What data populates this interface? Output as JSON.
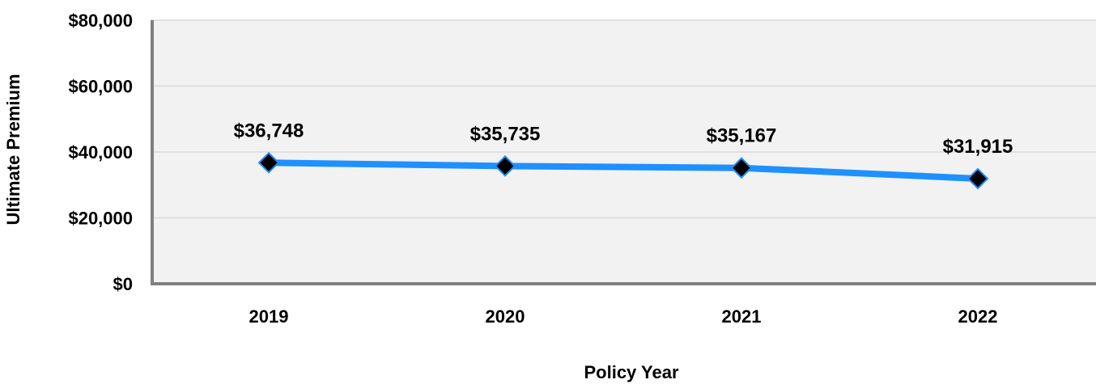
{
  "chart_data": {
    "type": "line",
    "title": "",
    "xlabel": "Policy Year",
    "ylabel": "Ultimate Premium",
    "categories": [
      "2019",
      "2020",
      "2021",
      "2022"
    ],
    "series": [
      {
        "values": [
          36748,
          35735,
          35167,
          31915
        ],
        "data_labels": [
          "$36,748",
          "$35,735",
          "$35,167",
          "$31,915"
        ],
        "color": "#1E90FF",
        "marker": "diamond",
        "marker_color": "#000000"
      }
    ],
    "ylim": [
      0,
      80000
    ],
    "yticks": [
      0,
      20000,
      40000,
      60000,
      80000
    ],
    "ytick_labels": [
      "$0",
      "$20,000",
      "$40,000",
      "$60,000",
      "$80,000"
    ],
    "grid": true,
    "plot_background": "#F2F2F2",
    "gridline_color": "#D9D9D9",
    "axis_color": "#808080"
  }
}
